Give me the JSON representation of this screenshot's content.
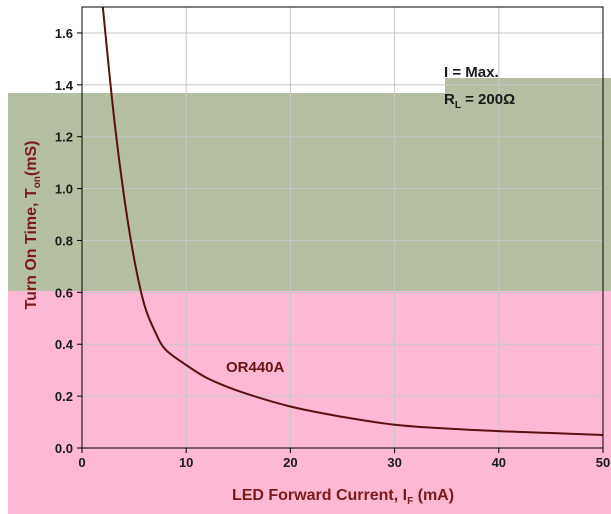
{
  "chart_data": {
    "type": "line",
    "xlabel": "LED Forward Current, I",
    "xlabel_sub": "F",
    "xlabel_unit": " (mA)",
    "ylabel": "Turn On Time, T",
    "ylabel_sub": "on",
    "ylabel_unit": "(mS)",
    "xlim": [
      0,
      50
    ],
    "ylim": [
      0,
      1.7
    ],
    "x_ticks": [
      0,
      10,
      20,
      30,
      40,
      50
    ],
    "y_ticks": [
      0.0,
      0.2,
      0.4,
      0.6,
      0.8,
      1.0,
      1.2,
      1.4,
      1.6
    ],
    "y_tick_labels": [
      "0.0",
      "0.2",
      "0.4",
      "0.6",
      "0.8",
      "1.0",
      "1.2",
      "1.4",
      "1.6"
    ],
    "grid": true,
    "series": [
      {
        "name": "OR440A",
        "color": "#5a1010",
        "x": [
          2,
          3,
          4,
          5,
          6,
          7,
          8,
          10,
          12,
          15,
          20,
          25,
          30,
          35,
          40,
          45,
          50
        ],
        "y": [
          1.7,
          1.3,
          0.98,
          0.73,
          0.55,
          0.45,
          0.38,
          0.32,
          0.27,
          0.22,
          0.16,
          0.12,
          0.09,
          0.075,
          0.065,
          0.058,
          0.05
        ]
      }
    ],
    "annotations": {
      "line1_main": "I",
      "line1_rest": " = Max.",
      "line2_main": "R",
      "line2_sub": "L",
      "line2_rest": " = 200Ω"
    },
    "colors": {
      "green_band": "#b5bfa3",
      "pink_band": "#fcb8d4",
      "axis_title": "#7a1a1a",
      "series_label": "#6a1212"
    }
  }
}
